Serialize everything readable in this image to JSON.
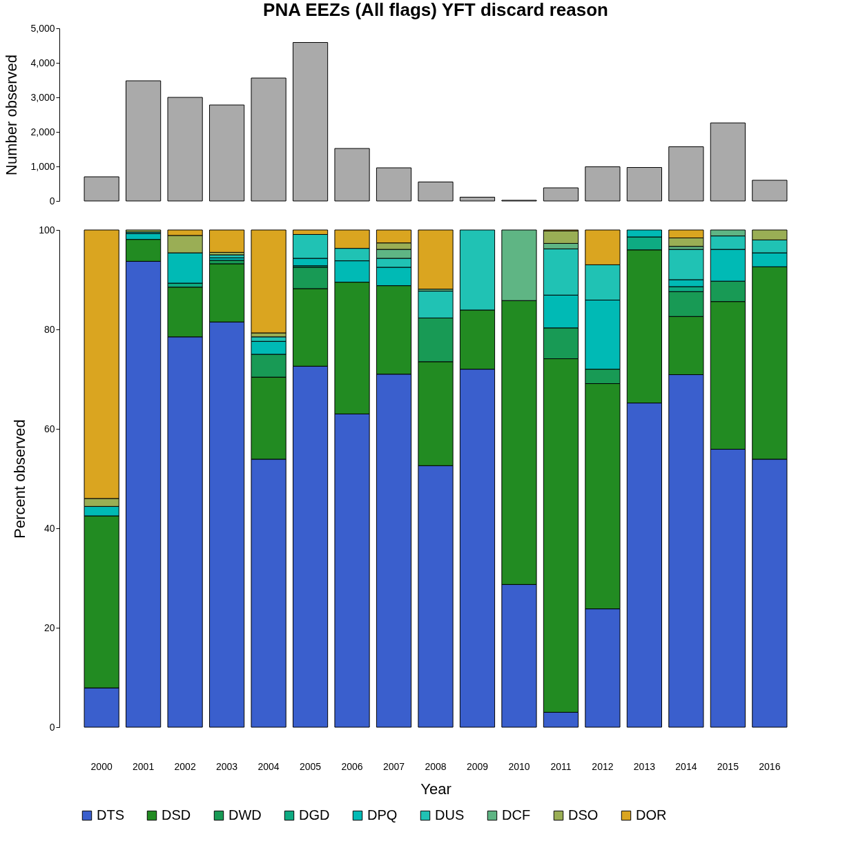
{
  "chart_data": [
    {
      "type": "bar",
      "title": "PNA EEZs (All flags) YFT discard reason",
      "ylabel": "Number observed",
      "categories": [
        "2000",
        "2001",
        "2002",
        "2003",
        "2004",
        "2005",
        "2006",
        "2007",
        "2008",
        "2009",
        "2010",
        "2011",
        "2012",
        "2013",
        "2014",
        "2015",
        "2016"
      ],
      "values": [
        700,
        3480,
        3000,
        2780,
        3560,
        4590,
        1520,
        960,
        550,
        110,
        20,
        380,
        990,
        970,
        1570,
        2260,
        600
      ],
      "color": "#aaaaaa",
      "ylim": [
        0,
        5000
      ],
      "yticks": [
        0,
        {
          "value": 1000,
          "label": "1,000"
        },
        {
          "value": 2000,
          "label": "2,000"
        },
        {
          "value": 3000,
          "label": "3,000"
        },
        {
          "value": 4000,
          "label": "4,000"
        },
        {
          "value": 5000,
          "label": "5,000"
        }
      ],
      "tick_labels": "y",
      "grid": false
    },
    {
      "type": "bar",
      "stacked": true,
      "xlabel": "Year",
      "ylabel": "Percent observed",
      "categories": [
        "2000",
        "2001",
        "2002",
        "2003",
        "2004",
        "2005",
        "2006",
        "2007",
        "2008",
        "2009",
        "2010",
        "2011",
        "2012",
        "2013",
        "2014",
        "2015",
        "2016"
      ],
      "series": [
        {
          "name": "DTS",
          "color": "#3a5fcd",
          "values": [
            7.9,
            93.7,
            78.5,
            81.5,
            53.9,
            72.6,
            63.0,
            71.0,
            52.6,
            72.0,
            28.7,
            3.0,
            23.8,
            65.2,
            70.9,
            55.9,
            53.9
          ]
        },
        {
          "name": "DSD",
          "color": "#228b22",
          "values": [
            34.6,
            4.4,
            10.0,
            11.7,
            16.5,
            15.6,
            26.5,
            17.8,
            20.9,
            11.9,
            57.1,
            71.1,
            45.3,
            30.8,
            11.7,
            29.7,
            38.7
          ]
        },
        {
          "name": "DWD",
          "color": "#189a55",
          "values": [
            null,
            null,
            null,
            0.7,
            4.6,
            4.3,
            null,
            null,
            8.8,
            null,
            null,
            6.2,
            2.9,
            null,
            5.0,
            4.1,
            null
          ]
        },
        {
          "name": "DGD",
          "color": "#0eab82",
          "values": [
            null,
            null,
            0.8,
            null,
            null,
            0.3,
            null,
            null,
            null,
            null,
            null,
            null,
            null,
            2.6,
            1.0,
            null,
            null
          ]
        },
        {
          "name": "DPQ",
          "color": "#00bab5",
          "values": [
            1.9,
            1.2,
            6.1,
            0.5,
            2.6,
            1.5,
            4.3,
            3.7,
            null,
            null,
            null,
            6.6,
            13.9,
            1.4,
            1.4,
            6.4,
            2.8
          ]
        },
        {
          "name": "DUS",
          "color": "#20c2b4",
          "values": [
            null,
            0.3,
            null,
            0.6,
            0.9,
            4.8,
            2.5,
            1.8,
            5.4,
            16.1,
            null,
            9.3,
            7.1,
            null,
            6.1,
            2.7,
            2.6
          ]
        },
        {
          "name": "DCF",
          "color": "#5fb584",
          "values": [
            null,
            null,
            null,
            null,
            null,
            null,
            null,
            1.8,
            0.4,
            null,
            14.2,
            1.1,
            null,
            null,
            0.6,
            1.2,
            null
          ]
        },
        {
          "name": "DSO",
          "color": "#9aae55",
          "values": [
            1.6,
            0.4,
            3.5,
            0.5,
            0.8,
            null,
            null,
            1.3,
            null,
            null,
            null,
            2.5,
            null,
            null,
            1.7,
            null,
            2.0
          ]
        },
        {
          "name": "DOR",
          "color": "#daa520",
          "values": [
            54.0,
            null,
            1.1,
            4.5,
            20.7,
            0.9,
            3.7,
            2.6,
            11.9,
            null,
            null,
            0.2,
            7.0,
            null,
            1.6,
            null,
            null
          ]
        }
      ],
      "ylim": [
        0,
        100
      ],
      "yticks": [
        0,
        20,
        40,
        60,
        80,
        100
      ],
      "grid": false,
      "legend": "bottom"
    }
  ]
}
